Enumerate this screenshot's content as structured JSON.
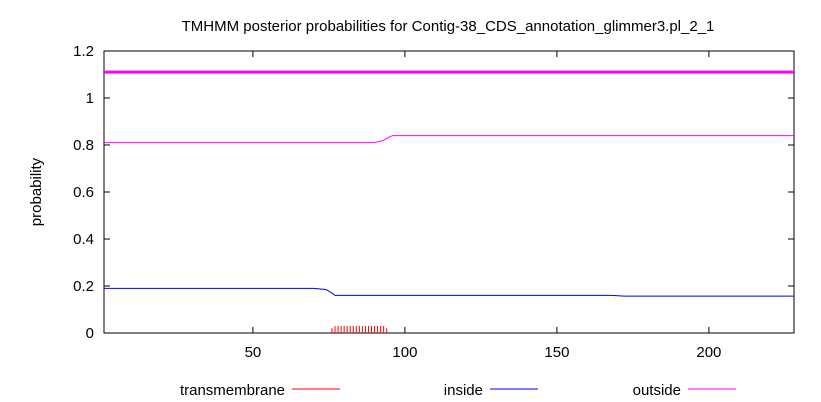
{
  "chart_data": {
    "type": "line",
    "title": "TMHMM posterior probabilities for Contig-38_CDS_annotation_glimmer3.pl_2_1",
    "xlabel": "",
    "ylabel": "probability",
    "xlim": [
      1,
      228
    ],
    "ylim": [
      0,
      1.2
    ],
    "x_ticks": [
      50,
      100,
      150,
      200
    ],
    "y_ticks": [
      0,
      0.2,
      0.4,
      0.6,
      0.8,
      1,
      1.2
    ],
    "grid": false,
    "legend_position": "bottom",
    "reference_line": {
      "y": 1.11,
      "color": "#ff00ff"
    },
    "series": [
      {
        "name": "transmembrane",
        "color": "#ff0000",
        "style": "impulses",
        "x": [
          76,
          77,
          78,
          79,
          80,
          81,
          82,
          83,
          84,
          85,
          86,
          87,
          88,
          89,
          90,
          91,
          92,
          93,
          94
        ],
        "y": [
          0.02,
          0.03,
          0.03,
          0.03,
          0.03,
          0.03,
          0.03,
          0.03,
          0.03,
          0.03,
          0.03,
          0.03,
          0.03,
          0.03,
          0.03,
          0.03,
          0.03,
          0.03,
          0.02
        ]
      },
      {
        "name": "inside",
        "color": "#0000ff",
        "style": "line",
        "x": [
          1,
          70,
          74,
          76,
          77,
          168,
          172,
          228
        ],
        "y": [
          0.19,
          0.19,
          0.185,
          0.17,
          0.16,
          0.16,
          0.157,
          0.157
        ]
      },
      {
        "name": "outside",
        "color": "#ff00ff",
        "style": "line",
        "x": [
          1,
          90,
          93,
          95,
          96,
          228
        ],
        "y": [
          0.81,
          0.81,
          0.82,
          0.835,
          0.84,
          0.84
        ]
      }
    ]
  }
}
